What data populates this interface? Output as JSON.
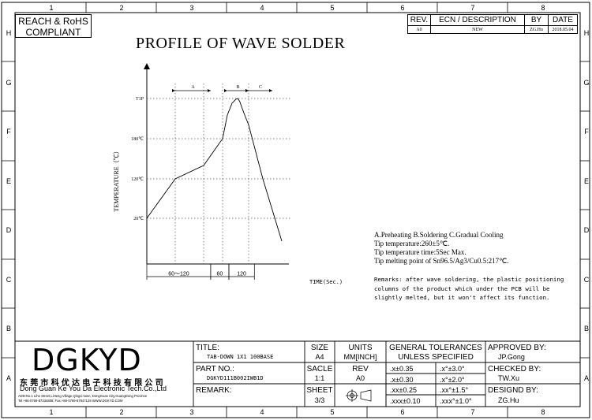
{
  "zone_columns": [
    "1",
    "2",
    "3",
    "4",
    "5",
    "6",
    "7",
    "8"
  ],
  "zone_rows": [
    "H",
    "G",
    "F",
    "E",
    "D",
    "C",
    "B",
    "A"
  ],
  "compliance": {
    "line1": "REACH & RoHS",
    "line2": "COMPLIANT"
  },
  "revision_table": {
    "headers": [
      "REV.",
      "ECN / DESCRIPTION",
      "BY",
      "DATE"
    ],
    "row": [
      "A0",
      "NEW",
      "ZG.Hu",
      "2018.05.04"
    ]
  },
  "title": "PROFILE OF WAVE SOLDER",
  "chart_data": {
    "type": "line",
    "ylabel": "TEMPERATURE（℃）",
    "xlabel": "TIME(Sec.)",
    "y_ticks": [
      "T1P",
      "180℃",
      "120℃",
      "20℃"
    ],
    "x_segments": [
      "60～120",
      "60",
      "120"
    ],
    "zones": [
      "A",
      "B",
      "C"
    ],
    "series": [
      {
        "x": [
          0,
          60,
          120,
          160,
          170,
          180,
          188,
          192,
          196,
          205,
          215,
          245,
          285
        ],
        "y": [
          20,
          120,
          140,
          180,
          240,
          270,
          280,
          282,
          275,
          245,
          215,
          120,
          10
        ]
      }
    ]
  },
  "notes": [
    "A.Preheating  B.Soldering  C.Gradual Cooling",
    "Tip temperature:260±5℃.",
    "Tip temperature time:5Sec Max.",
    "Tip melting point of Sn96.5/Ag3/Cu0.5:217℃."
  ],
  "remarks": "Remarks: after wave soldering, the plastic positioning columns of the product  which under the PCB will be slightly melted, but it won't affect its function.",
  "company": {
    "logo": "DGKYD",
    "name_cn": "东莞市科优达电子科技有限公司",
    "name_en": "Dong Guan Ke You Da Electronic Tech.Co.,Ltd",
    "address": "ADD:No.1 Lihe Street,LiHeng Village,Qingxi town, DongGuan City,GuangDong Province",
    "contact": "Tel:+86-0769-87334808; Fax:+86-0769-87847129  WWW.DGKYD.COM"
  },
  "title_block": {
    "title_label": "TITLE:",
    "title_value": "TAB-DOWN 1X1 100BASE",
    "part_label": "PART NO.:",
    "part_value": "DGKYD111B002IWB1D",
    "remark_label": "REMARK:",
    "size_label": "SIZE",
    "size_value": "A4",
    "scale_label": "SACLE",
    "scale_value": "1:1",
    "sheet_label": "SHEET",
    "sheet_value": "3/3",
    "units_label": "UNITS",
    "units_value": "MM[INCH]",
    "rev_label": "REV",
    "rev_value": "A0",
    "tol_header1": "GENERAL TOLERANCES",
    "tol_header2": "UNLESS SPECIFIED",
    "tolerances": [
      [
        ".x±0.35",
        ".x°±3.0°"
      ],
      [
        ".x±0.30",
        ".x°±2.0°"
      ],
      [
        ".xx±0.25",
        ".xx°±1.5°"
      ],
      [
        ".xxx±0.10",
        ".xxx°±1.0°"
      ]
    ],
    "approved_label": "APPROVED BY:",
    "approved_value": "JP.Gong",
    "checked_label": "CHECKED BY:",
    "checked_value": "TW.Xu",
    "designed_label": "DESIGND BY:",
    "designed_value": "ZG.Hu"
  }
}
